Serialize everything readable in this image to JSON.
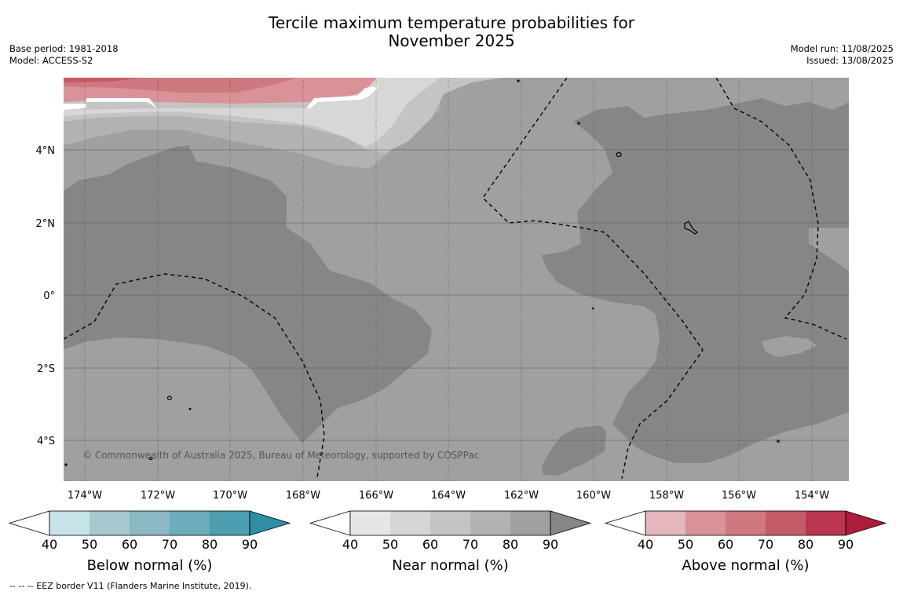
{
  "title_line1": "Tercile maximum temperature probabilities for",
  "title_line2": "November 2025",
  "base_period": "Base period: 1981-2018",
  "model": "Model: ACCESS-S2",
  "model_run": "Model run: 11/08/2025",
  "issued": "Issued: 13/08/2025",
  "map": {
    "lat_labels": [
      "4°N",
      "2°N",
      "0°",
      "2°S",
      "4°S"
    ],
    "lon_labels": [
      "174°W",
      "172°W",
      "170°W",
      "168°W",
      "166°W",
      "164°W",
      "162°W",
      "160°W",
      "158°W",
      "156°W",
      "154°W"
    ],
    "copyright": "© Commonwealth of Australia 2025, Bureau of Meteorology, supported by COSPPac"
  },
  "colorbars": [
    {
      "label": "Below normal (%)",
      "ticks": [
        "40",
        "50",
        "60",
        "70",
        "80",
        "90"
      ],
      "colors": [
        "#ffffff",
        "#c8e3ea",
        "#a8c8cf",
        "#8bb8c4",
        "#6cadbb",
        "#4b9eae",
        "#2e8ea4"
      ]
    },
    {
      "label": "Near normal (%)",
      "ticks": [
        "40",
        "50",
        "60",
        "70",
        "80",
        "90"
      ],
      "colors": [
        "#ffffff",
        "#e6e6e6",
        "#d5d5d5",
        "#c4c4c4",
        "#b2b2b2",
        "#a0a0a0",
        "#868686"
      ]
    },
    {
      "label": "Above normal (%)",
      "ticks": [
        "40",
        "50",
        "60",
        "70",
        "80",
        "90"
      ],
      "colors": [
        "#ffffff",
        "#e3b7bd",
        "#d99298",
        "#cf7880",
        "#c45b67",
        "#bb3550",
        "#ae1d3c"
      ]
    }
  ],
  "footnote": "--  --  -- EEZ border V11 (Flanders Marine Institute, 2019)."
}
